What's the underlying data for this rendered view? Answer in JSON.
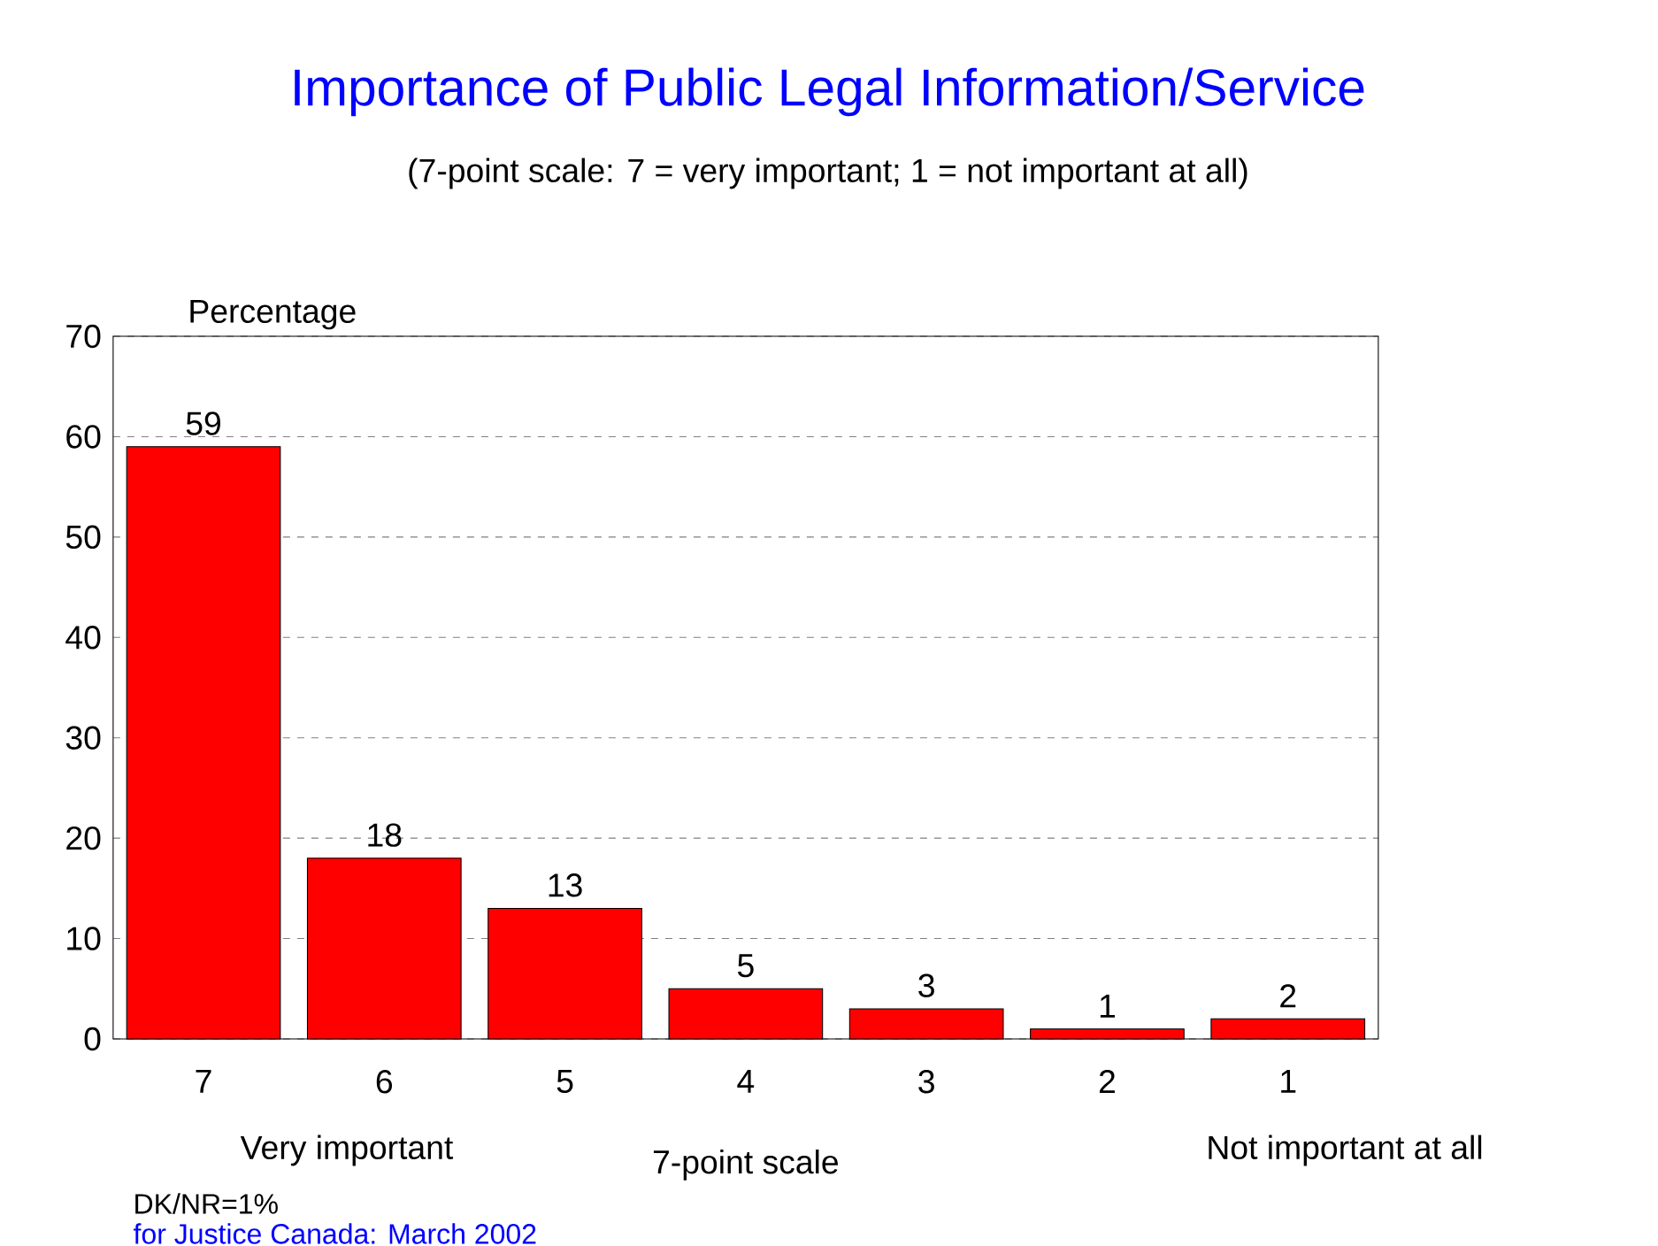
{
  "chart_data": {
    "type": "bar",
    "title": "Importance of Public Legal Information/Service",
    "subtitle": "(7-point scale: 7 = very important; 1 = not important at all)",
    "xlabel": "7-point scale",
    "ylabel": "Percentage",
    "categories": [
      "7",
      "6",
      "5",
      "4",
      "3",
      "2",
      "1"
    ],
    "values": [
      59,
      18,
      13,
      5,
      3,
      1,
      2
    ],
    "color": "#ff0000",
    "ylim": [
      0,
      70
    ],
    "yticks": [
      0,
      10,
      20,
      30,
      40,
      50,
      60,
      70
    ],
    "grid": "y",
    "data_labels": true,
    "annotations": [
      "Very important",
      "Not important at all",
      "DK/NR=1%",
      "for Justice Canada: March 2002"
    ]
  }
}
